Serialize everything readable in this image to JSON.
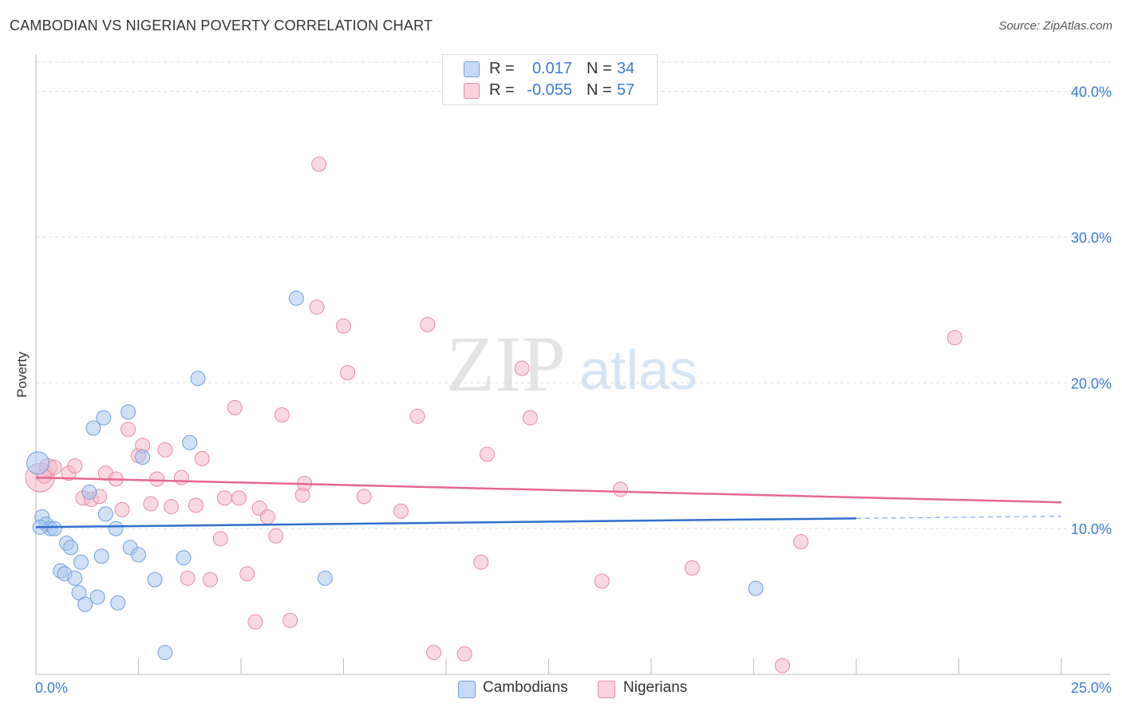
{
  "title": "CAMBODIAN VS NIGERIAN POVERTY CORRELATION CHART",
  "source": "Source: ZipAtlas.com",
  "watermark": {
    "zip": "ZIP",
    "atlas": "atlas"
  },
  "legend_top": {
    "rows": [
      {
        "r_label": "R =",
        "r_value": "0.017",
        "n_label": "N =",
        "n_value": "34",
        "color": "#a9c8ef"
      },
      {
        "r_label": "R =",
        "r_value": "-0.055",
        "n_label": "N =",
        "n_value": "57",
        "color": "#f5b8cb"
      }
    ]
  },
  "legend_bottom": [
    {
      "label": "Cambodians",
      "color": "#a9c8ef"
    },
    {
      "label": "Nigerians",
      "color": "#f5b8cb"
    }
  ],
  "chart_data": {
    "type": "scatter",
    "title": "CAMBODIAN VS NIGERIAN POVERTY CORRELATION CHART",
    "xlabel": "",
    "ylabel": "Poverty",
    "xlim": [
      0,
      25
    ],
    "ylim": [
      0,
      42
    ],
    "x_tick_labels": [
      "0.0%",
      "25.0%"
    ],
    "y_ticks": [
      10,
      20,
      30,
      40
    ],
    "y_tick_labels": [
      "10.0%",
      "20.0%",
      "30.0%",
      "40.0%"
    ],
    "grid": true,
    "series": [
      {
        "name": "Cambodians",
        "color": "#a9c8ef",
        "stroke": "#6fa0dc",
        "trend": {
          "x0": 0,
          "y0": 10.1,
          "x1": 20,
          "y1": 10.7,
          "dash_to_x": 25,
          "dash_to_y": 10.85,
          "color": "#2f6fcc"
        },
        "points": [
          [
            0.05,
            14.5
          ],
          [
            0.15,
            10.8
          ],
          [
            0.25,
            10.3
          ],
          [
            0.35,
            10.0
          ],
          [
            0.45,
            10.0
          ],
          [
            0.6,
            7.1
          ],
          [
            0.7,
            6.9
          ],
          [
            0.75,
            9.0
          ],
          [
            0.85,
            8.7
          ],
          [
            0.95,
            6.6
          ],
          [
            1.05,
            5.6
          ],
          [
            1.1,
            7.7
          ],
          [
            1.2,
            4.8
          ],
          [
            1.3,
            12.5
          ],
          [
            1.4,
            16.9
          ],
          [
            1.5,
            5.3
          ],
          [
            1.6,
            8.1
          ],
          [
            1.65,
            17.6
          ],
          [
            1.7,
            11.0
          ],
          [
            1.95,
            10.0
          ],
          [
            2.0,
            4.9
          ],
          [
            2.25,
            18.0
          ],
          [
            2.3,
            8.7
          ],
          [
            2.5,
            8.2
          ],
          [
            2.6,
            14.9
          ],
          [
            2.9,
            6.5
          ],
          [
            3.15,
            1.5
          ],
          [
            3.6,
            8.0
          ],
          [
            3.75,
            15.9
          ],
          [
            3.95,
            20.3
          ],
          [
            6.35,
            25.8
          ],
          [
            7.05,
            6.6
          ],
          [
            17.55,
            5.9
          ],
          [
            0.1,
            10.1
          ]
        ],
        "sizes": [
          14,
          9,
          9,
          9,
          9,
          9,
          9,
          9,
          9,
          9,
          9,
          9,
          9,
          9,
          9,
          9,
          9,
          9,
          9,
          9,
          9,
          9,
          9,
          9,
          9,
          9,
          9,
          9,
          9,
          9,
          9,
          9,
          9,
          9
        ]
      },
      {
        "name": "Nigerians",
        "color": "#f5b8cb",
        "stroke": "#e58aa7",
        "trend": {
          "x0": 0,
          "y0": 13.5,
          "x1": 25,
          "y1": 11.8,
          "color": "#e5688f"
        },
        "points": [
          [
            0.1,
            13.5
          ],
          [
            0.3,
            14.2
          ],
          [
            0.45,
            14.2
          ],
          [
            0.8,
            13.8
          ],
          [
            0.95,
            14.3
          ],
          [
            1.15,
            12.1
          ],
          [
            1.35,
            12.0
          ],
          [
            1.55,
            12.2
          ],
          [
            1.7,
            13.8
          ],
          [
            1.95,
            13.4
          ],
          [
            2.1,
            11.3
          ],
          [
            2.25,
            16.8
          ],
          [
            2.5,
            15.0
          ],
          [
            2.6,
            15.7
          ],
          [
            2.8,
            11.7
          ],
          [
            2.95,
            13.4
          ],
          [
            3.15,
            15.4
          ],
          [
            3.3,
            11.5
          ],
          [
            3.55,
            13.5
          ],
          [
            3.7,
            6.6
          ],
          [
            3.9,
            11.6
          ],
          [
            4.05,
            14.8
          ],
          [
            4.25,
            6.5
          ],
          [
            4.5,
            9.3
          ],
          [
            4.6,
            12.1
          ],
          [
            4.85,
            18.3
          ],
          [
            4.95,
            12.1
          ],
          [
            5.15,
            6.9
          ],
          [
            5.35,
            3.6
          ],
          [
            5.45,
            11.4
          ],
          [
            5.65,
            10.8
          ],
          [
            5.85,
            9.5
          ],
          [
            6.0,
            17.8
          ],
          [
            6.2,
            3.7
          ],
          [
            6.5,
            12.3
          ],
          [
            6.55,
            13.1
          ],
          [
            6.85,
            25.2
          ],
          [
            6.9,
            35.0
          ],
          [
            7.5,
            23.9
          ],
          [
            7.6,
            20.7
          ],
          [
            8.0,
            12.2
          ],
          [
            8.9,
            11.2
          ],
          [
            9.3,
            17.7
          ],
          [
            9.55,
            24.0
          ],
          [
            9.7,
            1.5
          ],
          [
            10.45,
            1.4
          ],
          [
            10.85,
            7.7
          ],
          [
            11.0,
            15.1
          ],
          [
            11.85,
            21.0
          ],
          [
            12.05,
            17.6
          ],
          [
            13.8,
            6.4
          ],
          [
            14.25,
            12.7
          ],
          [
            16.0,
            7.3
          ],
          [
            18.2,
            0.6
          ],
          [
            18.65,
            9.1
          ],
          [
            22.4,
            23.1
          ],
          [
            0.2,
            13.6
          ]
        ],
        "sizes": [
          18,
          11,
          9,
          9,
          9,
          9,
          9,
          9,
          9,
          9,
          9,
          9,
          9,
          9,
          9,
          9,
          9,
          9,
          9,
          9,
          9,
          9,
          9,
          9,
          9,
          9,
          9,
          9,
          9,
          9,
          9,
          9,
          9,
          9,
          9,
          9,
          9,
          9,
          9,
          9,
          9,
          9,
          9,
          9,
          9,
          9,
          9,
          9,
          9,
          9,
          9,
          9,
          9,
          9,
          9,
          9,
          9
        ]
      }
    ]
  }
}
